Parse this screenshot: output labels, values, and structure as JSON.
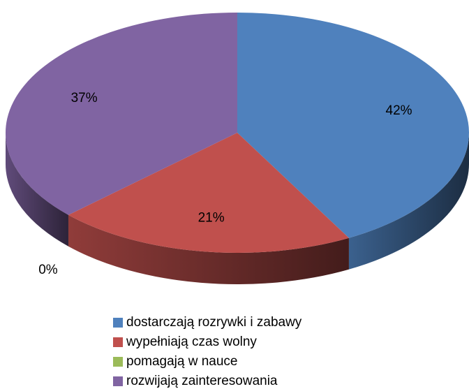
{
  "chart_data": {
    "type": "pie",
    "categories": [
      "dostarczają rozrywki i zabawy",
      "wypełniają czas wolny",
      "pomagają w nauce",
      "rozwijają zainteresowania"
    ],
    "values": [
      42,
      21,
      0,
      37
    ],
    "value_labels": [
      "42%",
      "21%",
      "0%",
      "37%"
    ],
    "colors": [
      "#4f81bd",
      "#c0504d",
      "#9bbb59",
      "#8064a2"
    ],
    "legend": "bottom"
  }
}
